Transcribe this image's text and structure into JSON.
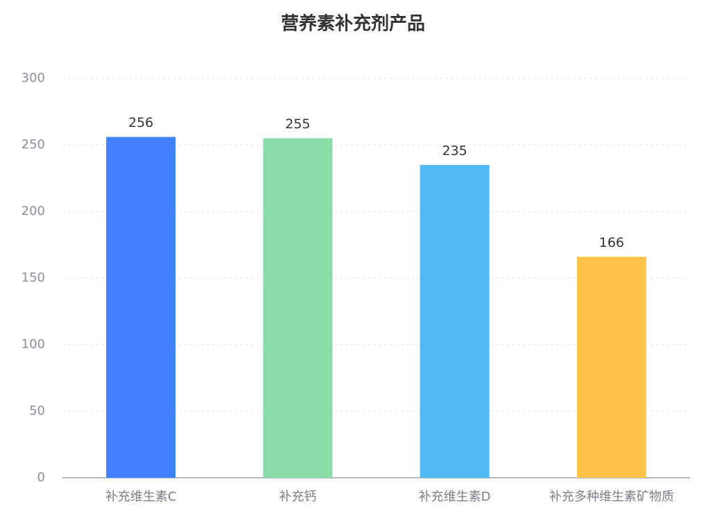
{
  "chart_data": {
    "type": "bar",
    "title": "营养素补充剂产品",
    "categories": [
      "补充维生素C",
      "补充钙",
      "补充维生素D",
      "补充多种维生素矿物质"
    ],
    "values": [
      256,
      255,
      235,
      166
    ],
    "colors": [
      "#4380fd",
      "#8bdda8",
      "#50b8f5",
      "#fec54a"
    ],
    "ylim": [
      0,
      300
    ],
    "yticks": [
      0,
      50,
      100,
      150,
      200,
      250,
      300
    ],
    "grid": true
  }
}
